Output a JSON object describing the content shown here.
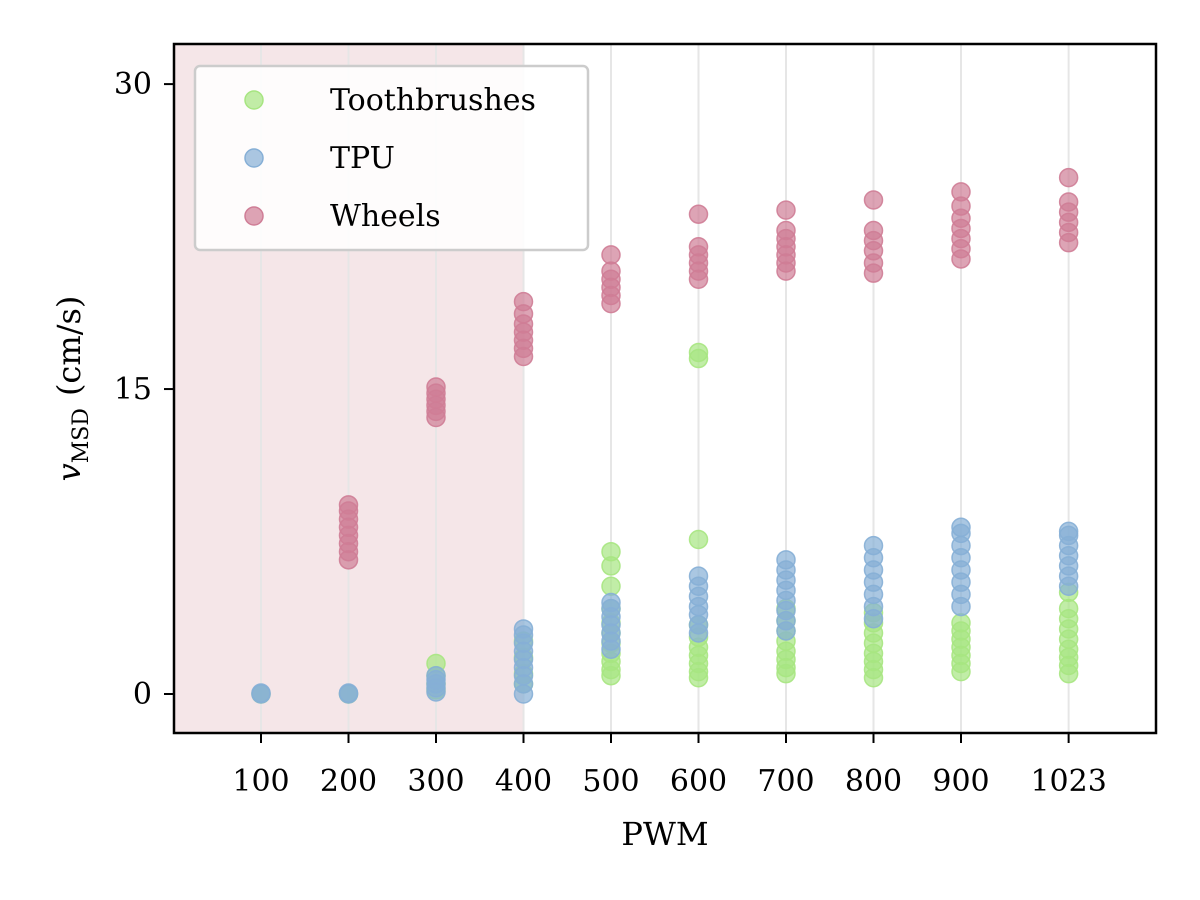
{
  "chart_data": {
    "type": "scatter",
    "title": "",
    "xlabel": "PWM",
    "ylabel": "(cm/s)",
    "ylabel_symbol": "v",
    "ylabel_subscript": "MSD",
    "x_ticks": [
      100,
      200,
      300,
      400,
      500,
      600,
      700,
      800,
      900,
      1023
    ],
    "x_tick_labels": [
      "100",
      "200",
      "300",
      "400",
      "500",
      "600",
      "700",
      "800",
      "900",
      "1023"
    ],
    "y_ticks": [
      0,
      15,
      30
    ],
    "y_tick_labels": [
      "0",
      "15",
      "30"
    ],
    "ylim": [
      -2,
      32
    ],
    "shaded_region": {
      "x_range": [
        0,
        400
      ],
      "color": "#f5e6e8"
    },
    "vertical_grid": true,
    "legend": {
      "position": "top-left"
    },
    "series": [
      {
        "name": "Toothbrushes",
        "color": "#a7e581",
        "points": [
          [
            100,
            0
          ],
          [
            200,
            0
          ],
          [
            300,
            0.2
          ],
          [
            300,
            0.5
          ],
          [
            300,
            0.9
          ],
          [
            300,
            1.5
          ],
          [
            400,
            0.5
          ],
          [
            400,
            1.0
          ],
          [
            400,
            1.8
          ],
          [
            400,
            2.6
          ],
          [
            500,
            0.9
          ],
          [
            500,
            1.2
          ],
          [
            500,
            1.6
          ],
          [
            500,
            2.0
          ],
          [
            500,
            2.5
          ],
          [
            500,
            3.0
          ],
          [
            500,
            3.5
          ],
          [
            500,
            4.2
          ],
          [
            500,
            5.3
          ],
          [
            500,
            6.3
          ],
          [
            500,
            7.0
          ],
          [
            600,
            0.8
          ],
          [
            600,
            1.1
          ],
          [
            600,
            1.5
          ],
          [
            600,
            1.9
          ],
          [
            600,
            2.3
          ],
          [
            600,
            2.8
          ],
          [
            600,
            3.4
          ],
          [
            600,
            7.6
          ],
          [
            600,
            16.5
          ],
          [
            600,
            16.8
          ],
          [
            700,
            1.0
          ],
          [
            700,
            1.3
          ],
          [
            700,
            1.7
          ],
          [
            700,
            2.1
          ],
          [
            700,
            2.6
          ],
          [
            700,
            3.1
          ],
          [
            700,
            3.6
          ],
          [
            700,
            4.2
          ],
          [
            800,
            0.8
          ],
          [
            800,
            1.2
          ],
          [
            800,
            1.6
          ],
          [
            800,
            2.0
          ],
          [
            800,
            2.5
          ],
          [
            800,
            3.0
          ],
          [
            800,
            3.5
          ],
          [
            800,
            4.0
          ],
          [
            900,
            1.1
          ],
          [
            900,
            1.5
          ],
          [
            900,
            1.9
          ],
          [
            900,
            2.3
          ],
          [
            900,
            2.7
          ],
          [
            900,
            3.1
          ],
          [
            900,
            3.5
          ],
          [
            1023,
            1.0
          ],
          [
            1023,
            1.4
          ],
          [
            1023,
            1.8
          ],
          [
            1023,
            2.2
          ],
          [
            1023,
            2.7
          ],
          [
            1023,
            3.2
          ],
          [
            1023,
            3.7
          ],
          [
            1023,
            4.2
          ],
          [
            1023,
            5.0
          ]
        ]
      },
      {
        "name": "TPU",
        "color": "#86afd6",
        "points": [
          [
            100,
            0
          ],
          [
            100,
            0.05
          ],
          [
            200,
            0
          ],
          [
            200,
            0.05
          ],
          [
            300,
            0.1
          ],
          [
            300,
            0.3
          ],
          [
            300,
            0.5
          ],
          [
            300,
            0.7
          ],
          [
            300,
            0.9
          ],
          [
            400,
            0.0
          ],
          [
            400,
            0.5
          ],
          [
            400,
            0.9
          ],
          [
            400,
            1.3
          ],
          [
            400,
            1.7
          ],
          [
            400,
            2.1
          ],
          [
            400,
            2.5
          ],
          [
            400,
            2.9
          ],
          [
            400,
            3.2
          ],
          [
            500,
            2.2
          ],
          [
            500,
            2.6
          ],
          [
            500,
            3.0
          ],
          [
            500,
            3.4
          ],
          [
            500,
            3.8
          ],
          [
            500,
            4.2
          ],
          [
            500,
            4.5
          ],
          [
            600,
            3.0
          ],
          [
            600,
            3.4
          ],
          [
            600,
            3.9
          ],
          [
            600,
            4.3
          ],
          [
            600,
            4.8
          ],
          [
            600,
            5.3
          ],
          [
            600,
            5.8
          ],
          [
            700,
            3.1
          ],
          [
            700,
            3.6
          ],
          [
            700,
            4.1
          ],
          [
            700,
            4.6
          ],
          [
            700,
            5.1
          ],
          [
            700,
            5.6
          ],
          [
            700,
            6.1
          ],
          [
            700,
            6.6
          ],
          [
            800,
            3.7
          ],
          [
            800,
            4.3
          ],
          [
            800,
            4.9
          ],
          [
            800,
            5.5
          ],
          [
            800,
            6.1
          ],
          [
            800,
            6.7
          ],
          [
            800,
            7.3
          ],
          [
            900,
            4.3
          ],
          [
            900,
            4.9
          ],
          [
            900,
            5.5
          ],
          [
            900,
            6.1
          ],
          [
            900,
            6.7
          ],
          [
            900,
            7.3
          ],
          [
            900,
            7.9
          ],
          [
            900,
            8.2
          ],
          [
            1023,
            5.3
          ],
          [
            1023,
            5.8
          ],
          [
            1023,
            6.3
          ],
          [
            1023,
            6.8
          ],
          [
            1023,
            7.3
          ],
          [
            1023,
            7.8
          ],
          [
            1023,
            8.0
          ]
        ]
      },
      {
        "name": "Wheels",
        "color": "#cf7d96",
        "points": [
          [
            200,
            6.6
          ],
          [
            200,
            7.0
          ],
          [
            200,
            7.4
          ],
          [
            200,
            7.8
          ],
          [
            200,
            8.2
          ],
          [
            200,
            8.6
          ],
          [
            200,
            9.0
          ],
          [
            200,
            9.3
          ],
          [
            300,
            13.6
          ],
          [
            300,
            13.9
          ],
          [
            300,
            14.2
          ],
          [
            300,
            14.5
          ],
          [
            300,
            14.8
          ],
          [
            300,
            15.1
          ],
          [
            400,
            16.6
          ],
          [
            400,
            17.0
          ],
          [
            400,
            17.4
          ],
          [
            400,
            17.8
          ],
          [
            400,
            18.2
          ],
          [
            400,
            18.7
          ],
          [
            400,
            19.3
          ],
          [
            500,
            19.2
          ],
          [
            500,
            19.6
          ],
          [
            500,
            20.0
          ],
          [
            500,
            20.4
          ],
          [
            500,
            20.8
          ],
          [
            500,
            21.6
          ],
          [
            600,
            20.4
          ],
          [
            600,
            20.8
          ],
          [
            600,
            21.2
          ],
          [
            600,
            21.6
          ],
          [
            600,
            22.0
          ],
          [
            600,
            23.6
          ],
          [
            700,
            20.8
          ],
          [
            700,
            21.2
          ],
          [
            700,
            21.6
          ],
          [
            700,
            22.0
          ],
          [
            700,
            22.4
          ],
          [
            700,
            22.8
          ],
          [
            700,
            23.8
          ],
          [
            800,
            20.7
          ],
          [
            800,
            21.2
          ],
          [
            800,
            21.8
          ],
          [
            800,
            22.3
          ],
          [
            800,
            22.8
          ],
          [
            800,
            24.3
          ],
          [
            900,
            21.4
          ],
          [
            900,
            21.9
          ],
          [
            900,
            22.4
          ],
          [
            900,
            22.9
          ],
          [
            900,
            23.4
          ],
          [
            900,
            24.0
          ],
          [
            900,
            24.7
          ],
          [
            1023,
            22.2
          ],
          [
            1023,
            22.7
          ],
          [
            1023,
            23.2
          ],
          [
            1023,
            23.7
          ],
          [
            1023,
            24.2
          ],
          [
            1023,
            25.4
          ]
        ]
      }
    ]
  }
}
